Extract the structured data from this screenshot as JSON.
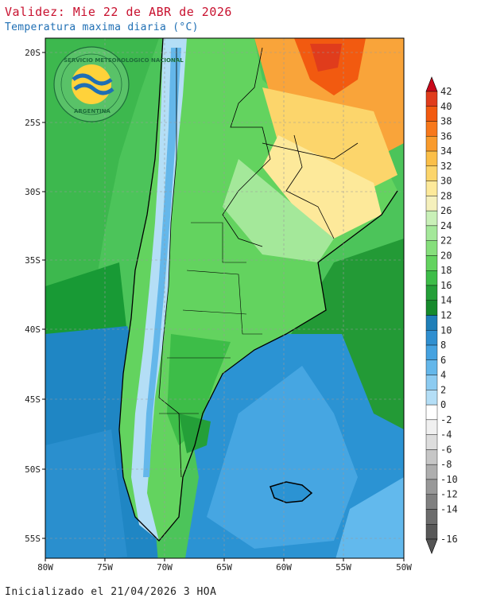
{
  "header": {
    "title": "Validez: Mie 22 de ABR de 2026",
    "subtitle": "Temperatura maxima diaria (°C)"
  },
  "footer": {
    "init_text": "Inicializado el 21/04/2026 3 HOA"
  },
  "logo": {
    "top_text": "SERVICIO METEOROLOGICO NACIONAL",
    "bottom_text": "ARGENTINA"
  },
  "axes": {
    "lat_labels": [
      "20S",
      "25S",
      "30S",
      "35S",
      "40S",
      "45S",
      "50S",
      "55S"
    ],
    "lon_labels": [
      "80W",
      "75W",
      "70W",
      "65W",
      "60W",
      "55W",
      "50W"
    ]
  },
  "colorbar": {
    "labels": [
      "42",
      "40",
      "38",
      "36",
      "34",
      "32",
      "30",
      "28",
      "26",
      "24",
      "22",
      "20",
      "18",
      "16",
      "14",
      "12",
      "10",
      "8",
      "6",
      "4",
      "2",
      "0",
      "-2",
      "-4",
      "-6",
      "-8",
      "-10",
      "-12",
      "-14",
      "-16"
    ],
    "colors": [
      "#e03c1c",
      "#f25a10",
      "#f7781b",
      "#f99b2c",
      "#fbbf48",
      "#fcd56b",
      "#fde99a",
      "#f5f0bc",
      "#c9f0b8",
      "#a4e89a",
      "#86df7c",
      "#63d35f",
      "#3dbd48",
      "#249f38",
      "#168a2c",
      "#1f7fb8",
      "#2f8fd0",
      "#45a2e0",
      "#64b7ea",
      "#8ccbf1",
      "#b4def6",
      "#ffffff",
      "#f0f0f0",
      "#dddddd",
      "#c6c6c6",
      "#aeaeae",
      "#989898",
      "#808080",
      "#6c6c6c",
      "#585858"
    ],
    "arrow_top_color": "#c9081a",
    "arrow_bottom_color": "#555555"
  }
}
